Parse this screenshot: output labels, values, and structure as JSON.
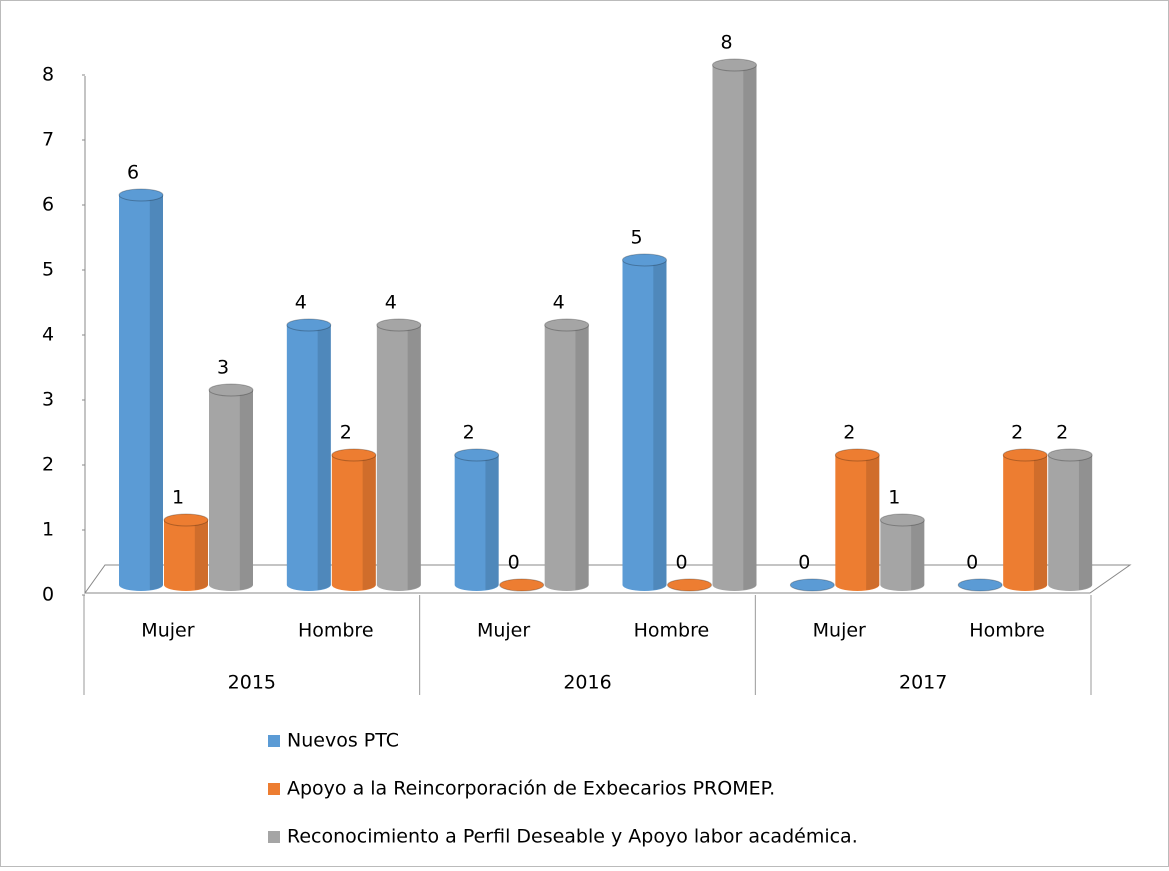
{
  "chart_data": {
    "type": "bar",
    "categories": [
      "Mujer",
      "Hombre",
      "Mujer",
      "Hombre",
      "Mujer",
      "Hombre"
    ],
    "groups": [
      "2015",
      "2016",
      "2017"
    ],
    "series": [
      {
        "name": "Nuevos PTC",
        "color": "#5b9bd5",
        "values": [
          6,
          4,
          2,
          5,
          0,
          0
        ]
      },
      {
        "name": "Apoyo a la Reincorporación de Exbecarios PROMEP.",
        "color": "#ed7d31",
        "values": [
          1,
          2,
          0,
          0,
          2,
          2
        ]
      },
      {
        "name": "Reconocimiento a Perfil Deseable y Apoyo labor académica.",
        "color": "#a5a5a5",
        "values": [
          3,
          4,
          4,
          8,
          1,
          2
        ]
      }
    ],
    "ylim": [
      0,
      8
    ],
    "yticks": [
      0,
      1,
      2,
      3,
      4,
      5,
      6,
      7,
      8
    ],
    "legend": "bottom"
  }
}
